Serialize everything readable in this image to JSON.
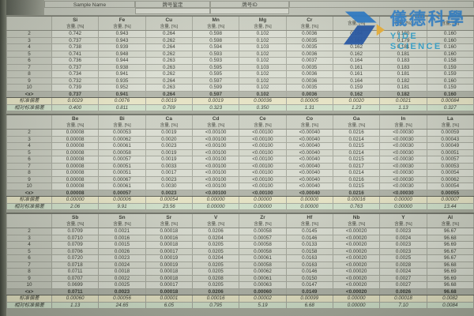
{
  "top_bar": {
    "sample_name": "Sample Name",
    "col2": "牌号鉴定",
    "col3": "牌号ID"
  },
  "logo": {
    "cn": "儀德科學",
    "en": "YIDE SCIENCE"
  },
  "unit_label": "含量, [%]",
  "row_labels": {
    "mean": "<x>",
    "std": "标准偏差",
    "rsd": "相对标准偏差"
  },
  "colors": {
    "below_detection_text": "#2636b8",
    "logo_blue": "#2377cd",
    "logo_teal": "#28a3d8",
    "logo_yellow": "#f2b230"
  },
  "tables": [
    {
      "elements": [
        "Si",
        "Fe",
        "Cu",
        "Mn",
        "Mg",
        "Cr",
        "",
        "",
        ""
      ],
      "rows": [
        {
          "label": "2",
          "values": [
            "0.742",
            "0.943",
            "0.264",
            "0.598",
            "0.102",
            "0.0036",
            "0.164",
            "0.180",
            "0.160"
          ]
        },
        {
          "label": "3",
          "values": [
            "0.737",
            "0.943",
            "0.262",
            "0.598",
            "0.102",
            "0.0035",
            "0.164",
            "0.179",
            "0.160"
          ]
        },
        {
          "label": "4",
          "values": [
            "0.738",
            "0.939",
            "0.264",
            "0.594",
            "0.103",
            "0.0035",
            "0.162",
            "0.181",
            "0.160"
          ]
        },
        {
          "label": "5",
          "values": [
            "0.741",
            "0.948",
            "0.262",
            "0.593",
            "0.102",
            "0.0036",
            "0.162",
            "0.181",
            "0.160"
          ]
        },
        {
          "label": "6",
          "values": [
            "0.736",
            "0.944",
            "0.263",
            "0.593",
            "0.102",
            "0.0037",
            "0.164",
            "0.183",
            "0.158"
          ]
        },
        {
          "label": "7",
          "values": [
            "0.737",
            "0.938",
            "0.263",
            "0.595",
            "0.103",
            "0.0035",
            "0.161",
            "0.183",
            "0.159"
          ]
        },
        {
          "label": "8",
          "values": [
            "0.734",
            "0.941",
            "0.262",
            "0.595",
            "0.102",
            "0.0036",
            "0.161",
            "0.181",
            "0.159"
          ]
        },
        {
          "label": "9",
          "values": [
            "0.732",
            "0.935",
            "0.264",
            "0.597",
            "0.102",
            "0.0036",
            "0.164",
            "0.182",
            "0.160"
          ]
        },
        {
          "label": "10",
          "values": [
            "0.739",
            "0.952",
            "0.263",
            "0.599",
            "0.102",
            "0.0035",
            "0.159",
            "0.181",
            "0.159"
          ]
        }
      ],
      "mean": [
        "0.737",
        "0.941",
        "0.264",
        "0.597",
        "0.102",
        "0.0036",
        "0.162",
        "0.182",
        "0.160"
      ],
      "std": [
        "0.0029",
        "0.0076",
        "0.0019",
        "0.0019",
        "0.00036",
        "0.00005",
        "0.0020",
        "0.0021",
        "0.00084"
      ],
      "rsd": [
        "0.400",
        "0.811",
        "0.709",
        "0.323",
        "0.350",
        "1.31",
        "1.23",
        "1.13",
        "0.327"
      ]
    },
    {
      "elements": [
        "Be",
        "Bi",
        "Ca",
        "Cd",
        "Ce",
        "Co",
        "Ga",
        "In",
        "La"
      ],
      "rows": [
        {
          "label": "2",
          "values": [
            "0.00008",
            "0.00053",
            "0.0019",
            "<0.00100",
            "<0.00100",
            "<0.00040",
            "0.0216",
            "<0.00030",
            "0.00059"
          ]
        },
        {
          "label": "3",
          "values": [
            "0.00008",
            "0.00062",
            "0.0020",
            "<0.00100",
            "<0.00100",
            "<0.00040",
            "0.0214",
            "<0.00030",
            "0.00043"
          ]
        },
        {
          "label": "4",
          "values": [
            "0.00008",
            "0.00061",
            "0.0023",
            "<0.00100",
            "<0.00100",
            "<0.00040",
            "0.0215",
            "<0.00030",
            "0.00049"
          ]
        },
        {
          "label": "5",
          "values": [
            "0.00008",
            "0.00058",
            "0.0019",
            "<0.00100",
            "<0.00100",
            "<0.00040",
            "0.0214",
            "<0.00030",
            "0.00051"
          ]
        },
        {
          "label": "6",
          "values": [
            "0.00008",
            "0.00057",
            "0.0019",
            "<0.00100",
            "<0.00100",
            "<0.00040",
            "0.0215",
            "<0.00030",
            "0.00057"
          ]
        },
        {
          "label": "7",
          "values": [
            "0.00008",
            "0.00051",
            "0.0033",
            "<0.00100",
            "<0.00100",
            "<0.00040",
            "0.0217",
            "<0.00030",
            "0.00053"
          ]
        },
        {
          "label": "8",
          "values": [
            "0.00008",
            "0.00051",
            "0.0017",
            "<0.00100",
            "<0.00100",
            "<0.00040",
            "0.0214",
            "<0.00030",
            "0.00054"
          ]
        },
        {
          "label": "9",
          "values": [
            "0.00008",
            "0.00067",
            "0.0023",
            "<0.00100",
            "<0.00100",
            "<0.00040",
            "0.0216",
            "<0.00030",
            "0.00062"
          ]
        },
        {
          "label": "10",
          "values": [
            "0.00008",
            "0.00061",
            "0.0030",
            "<0.00100",
            "<0.00100",
            "<0.00040",
            "0.0215",
            "<0.00030",
            "0.00054"
          ]
        }
      ],
      "mean": [
        "0.00008",
        "0.00057",
        "0.0023",
        "<0.00100",
        "<0.00100",
        "<0.00040",
        "0.0216",
        "<0.00030",
        "0.00055"
      ],
      "std": [
        "0.00000",
        "0.00006",
        "0.00054",
        "0.00000",
        "0.00000",
        "0.00000",
        "0.00016",
        "0.00000",
        "0.00007"
      ],
      "rsd": [
        "2.06",
        "9.91",
        "23.56",
        "0.00000",
        "0.00000",
        "0.00000",
        "0.763",
        "0.00000",
        "13.44"
      ]
    },
    {
      "elements": [
        "Sb",
        "Sn",
        "Sr",
        "V",
        "Zr",
        "Hf",
        "Nb",
        "Y",
        "Al"
      ],
      "rows": [
        {
          "label": "2",
          "values": [
            "0.0709",
            "0.0021",
            "0.00018",
            "0.0206",
            "0.00058",
            "0.0145",
            "<0.00020",
            "0.0023",
            "96.67"
          ]
        },
        {
          "label": "3",
          "values": [
            "0.0710",
            "0.0016",
            "0.00016",
            "0.0204",
            "0.00057",
            "0.0146",
            "<0.00020",
            "0.0024",
            "96.68"
          ]
        },
        {
          "label": "4",
          "values": [
            "0.0709",
            "0.0015",
            "0.00018",
            "0.0205",
            "0.00058",
            "0.0133",
            "<0.00020",
            "0.0023",
            "96.69"
          ]
        },
        {
          "label": "5",
          "values": [
            "0.0706",
            "0.0026",
            "0.00017",
            "0.0205",
            "0.00058",
            "0.0158",
            "<0.00020",
            "0.0023",
            "96.67"
          ]
        },
        {
          "label": "6",
          "values": [
            "0.0720",
            "0.0023",
            "0.00019",
            "0.0204",
            "0.00061",
            "0.0163",
            "<0.00020",
            "0.0025",
            "96.67"
          ]
        },
        {
          "label": "7",
          "values": [
            "0.0718",
            "0.0024",
            "0.00019",
            "0.0205",
            "0.00058",
            "0.0163",
            "<0.00020",
            "0.0028",
            "96.68"
          ]
        },
        {
          "label": "8",
          "values": [
            "0.0711",
            "0.0018",
            "0.00018",
            "0.0205",
            "0.00062",
            "0.0146",
            "<0.00020",
            "0.0024",
            "96.69"
          ]
        },
        {
          "label": "9",
          "values": [
            "0.0707",
            "0.0022",
            "0.00018",
            "0.0208",
            "0.00061",
            "0.0150",
            "<0.00020",
            "0.0027",
            "96.69"
          ]
        },
        {
          "label": "10",
          "values": [
            "0.0699",
            "0.0025",
            "0.00017",
            "0.0205",
            "0.00063",
            "0.0147",
            "<0.00020",
            "0.0027",
            "96.68"
          ]
        }
      ],
      "mean": [
        "0.0711",
        "0.0023",
        "0.00018",
        "0.0206",
        "0.00060",
        "0.0149",
        "<0.00020",
        "0.0026",
        "96.68"
      ],
      "std": [
        "0.00060",
        "0.00056",
        "0.00001",
        "0.00016",
        "0.00002",
        "0.00099",
        "0.00000",
        "0.00018",
        "0.0082"
      ],
      "rsd": [
        "1.13",
        "24.65",
        "6.05",
        "0.795",
        "5.19",
        "6.68",
        "0.00000",
        "7.10",
        "0.0084"
      ]
    }
  ]
}
